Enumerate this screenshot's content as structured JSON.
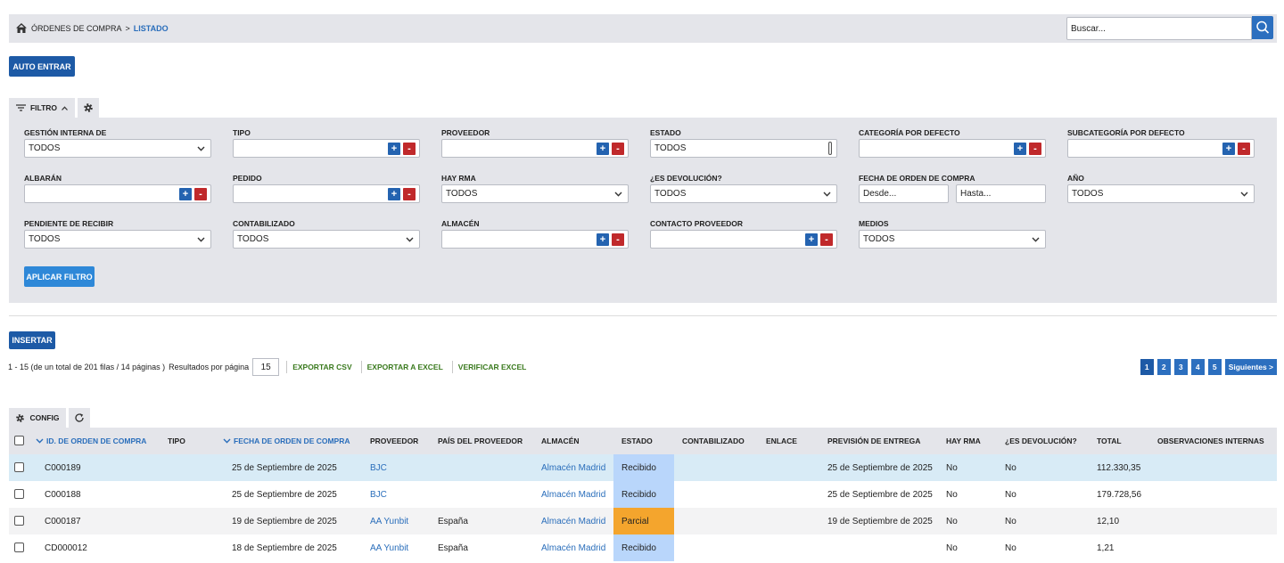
{
  "breadcrumb": {
    "section": "ÓRDENES DE COMPRA",
    "separator": ">",
    "current": "LISTADO"
  },
  "search": {
    "placeholder": "Buscar..."
  },
  "actions": {
    "auto_enter": "AUTO ENTRAR",
    "insert": "INSERTAR"
  },
  "filter": {
    "toggle": "FILTRO",
    "add": "+",
    "remove": "-",
    "apply": "APLICAR FILTRO",
    "fields": [
      {
        "label": "GESTIÓN INTERNA DE",
        "kind": "select",
        "value": "TODOS"
      },
      {
        "label": "TIPO",
        "kind": "lookup"
      },
      {
        "label": "PROVEEDOR",
        "kind": "lookup"
      },
      {
        "label": "ESTADO",
        "kind": "multi",
        "value": "TODOS"
      },
      {
        "label": "CATEGORÍA POR DEFECTO",
        "kind": "lookup"
      },
      {
        "label": "SUBCATEGORÍA POR DEFECTO",
        "kind": "lookup"
      },
      {
        "label": "ALBARÁN",
        "kind": "lookup"
      },
      {
        "label": "PEDIDO",
        "kind": "lookup"
      },
      {
        "label": "HAY RMA",
        "kind": "select",
        "value": "TODOS"
      },
      {
        "label": "¿ES DEVOLUCIÓN?",
        "kind": "select",
        "value": "TODOS"
      },
      {
        "label": "FECHA DE ORDEN DE COMPRA",
        "kind": "daterange",
        "from": "Desde...",
        "to": "Hasta..."
      },
      {
        "label": "AÑO",
        "kind": "select",
        "value": "TODOS"
      },
      {
        "label": "PENDIENTE DE RECIBIR",
        "kind": "select",
        "value": "TODOS"
      },
      {
        "label": "CONTABILIZADO",
        "kind": "select",
        "value": "TODOS"
      },
      {
        "label": "ALMACÉN",
        "kind": "lookup"
      },
      {
        "label": "CONTACTO PROVEEDOR",
        "kind": "lookup"
      },
      {
        "label": "MEDIOS",
        "kind": "select",
        "value": "TODOS"
      }
    ]
  },
  "listing": {
    "summary": "1 - 15 (de un total de 201 filas / 14 páginas )",
    "per_page_label": "Resultados por página",
    "per_page": 15,
    "links": [
      "EXPORTAR CSV",
      "EXPORTAR A EXCEL",
      "VERIFICAR EXCEL"
    ],
    "pages": [
      1,
      2,
      3,
      4,
      5
    ],
    "current_page": 1,
    "next": "Siguientes >"
  },
  "table": {
    "config": "CONFIG",
    "selected_row": 0,
    "columns": [
      {
        "label": "ID. DE ORDEN DE COMPRA",
        "sorted": true
      },
      {
        "label": "TIPO"
      },
      {
        "label": "FECHA DE ORDEN DE COMPRA",
        "sorted": true
      },
      {
        "label": "PROVEEDOR",
        "link": true
      },
      {
        "label": "PAÍS DEL PROVEEDOR"
      },
      {
        "label": "ALMACÉN",
        "link": true
      },
      {
        "label": "ESTADO",
        "status": true
      },
      {
        "label": "CONTABILIZADO"
      },
      {
        "label": "ENLACE"
      },
      {
        "label": "PREVISIÓN DE ENTREGA"
      },
      {
        "label": "HAY RMA"
      },
      {
        "label": "¿ES DEVOLUCIÓN?"
      },
      {
        "label": "TOTAL"
      },
      {
        "label": "OBSERVACIONES INTERNAS"
      }
    ],
    "rows": [
      {
        "status_color": "#b9d6fb",
        "cells": [
          "C000189",
          null,
          "25 de Septiembre de 2025",
          "BJC",
          null,
          "Almacén Madrid",
          "Recibido",
          null,
          null,
          "25 de Septiembre de 2025",
          "No",
          "No",
          "112.330,35",
          null
        ]
      },
      {
        "status_color": "#b9d6fb",
        "cells": [
          "C000188",
          null,
          "25 de Septiembre de 2025",
          "BJC",
          null,
          "Almacén Madrid",
          "Recibido",
          null,
          null,
          "25 de Septiembre de 2025",
          "No",
          "No",
          "179.728,56",
          null
        ]
      },
      {
        "status_color": "#f4a52d",
        "cells": [
          "C000187",
          null,
          "19 de Septiembre de 2025",
          "AA Yunbit",
          "España",
          "Almacén Madrid",
          "Parcial",
          null,
          null,
          "19 de Septiembre de 2025",
          "No",
          "No",
          "12,10",
          null
        ]
      },
      {
        "status_color": "#b9d6fb",
        "cells": [
          "CD000012",
          null,
          "18 de Septiembre de 2025",
          "AA Yunbit",
          "España",
          "Almacén Madrid",
          "Recibido",
          null,
          null,
          null,
          "No",
          "No",
          "1,21",
          null
        ]
      }
    ]
  }
}
